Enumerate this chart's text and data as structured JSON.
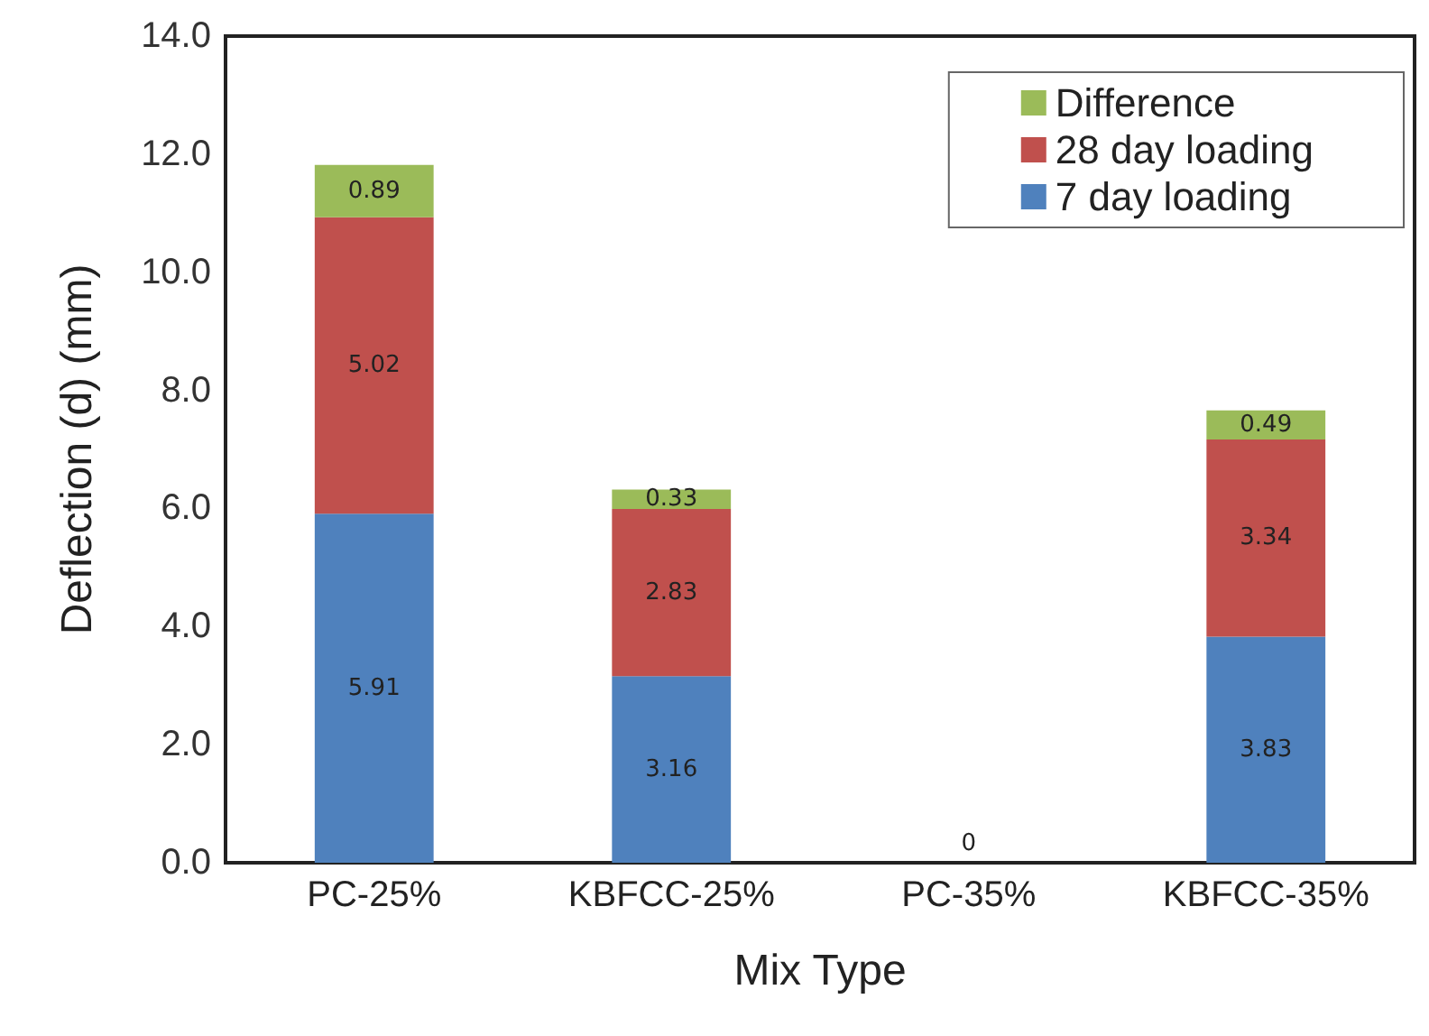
{
  "chart_data": {
    "type": "bar",
    "stacked": true,
    "xlabel": "Mix Type",
    "ylabel": "Deflection (d) (mm)",
    "categories": [
      "PC-25%",
      "KBFCC-25%",
      "PC-35%",
      "KBFCC-35%"
    ],
    "series": [
      {
        "name": "7 day loading",
        "color": "#4f81bd",
        "values": [
          5.91,
          3.16,
          0,
          3.83
        ],
        "value_labels": [
          "5.91",
          "3.16",
          "0",
          "3.83"
        ]
      },
      {
        "name": "28 day loading",
        "color": "#c0504d",
        "values": [
          5.02,
          2.83,
          null,
          3.34
        ],
        "value_labels": [
          "5.02",
          "2.83",
          null,
          "3.34"
        ]
      },
      {
        "name": "Difference",
        "color": "#9bbb59",
        "values": [
          0.89,
          0.33,
          null,
          0.49
        ],
        "value_labels": [
          "0.89",
          "0.33",
          null,
          "0.49"
        ]
      }
    ],
    "ylim": [
      0,
      14
    ],
    "yticks": [
      {
        "value": 0,
        "label": "0.0"
      },
      {
        "value": 2,
        "label": "2.0"
      },
      {
        "value": 4,
        "label": "4.0"
      },
      {
        "value": 6,
        "label": "6.0"
      },
      {
        "value": 8,
        "label": "8.0"
      },
      {
        "value": 10,
        "label": "10.0"
      },
      {
        "value": 12,
        "label": "12.0"
      },
      {
        "value": 14,
        "label": "14.0"
      }
    ],
    "grid": false,
    "legend": "top right"
  }
}
